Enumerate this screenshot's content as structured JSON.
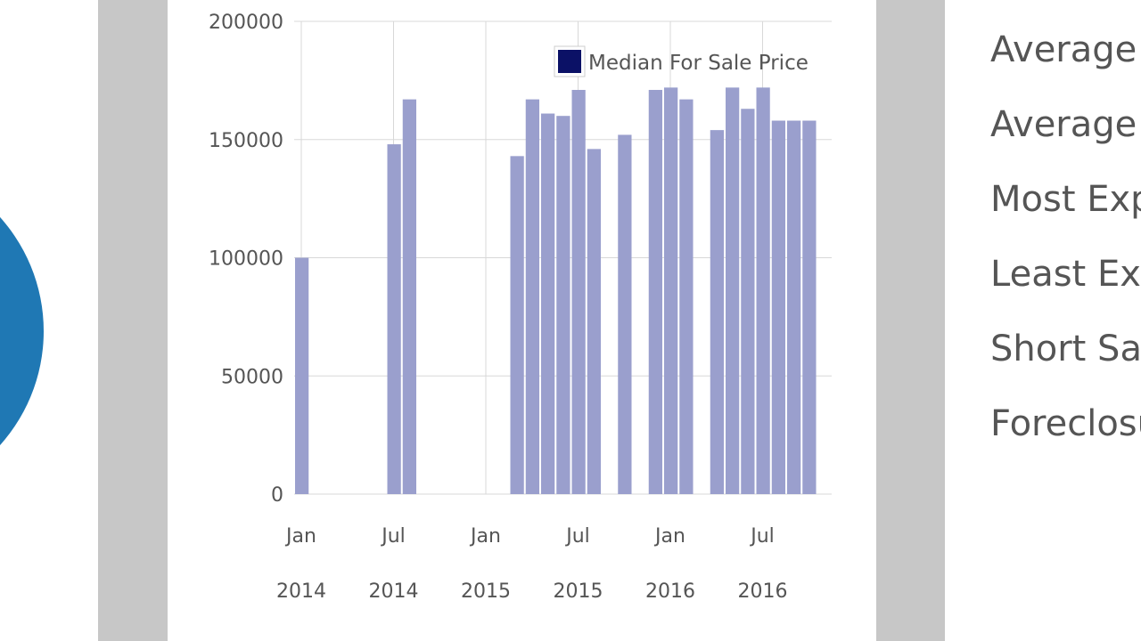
{
  "chart_data": {
    "type": "bar",
    "title": "",
    "xlabel": "",
    "ylabel": "",
    "ylim": [
      0,
      200000
    ],
    "y_ticks": [
      0,
      50000,
      100000,
      150000,
      200000
    ],
    "x_ticks": [
      {
        "month": "Jan",
        "year": "2014",
        "index": 0
      },
      {
        "month": "Jul",
        "year": "2014",
        "index": 6
      },
      {
        "month": "Jan",
        "year": "2015",
        "index": 12
      },
      {
        "month": "Jul",
        "year": "2015",
        "index": 18
      },
      {
        "month": "Jan",
        "year": "2016",
        "index": 24
      },
      {
        "month": "Jul",
        "year": "2016",
        "index": 30
      }
    ],
    "grid": true,
    "legend_position": "top-right",
    "series": [
      {
        "name": "Median For Sale Price",
        "color": "#9a9fcd",
        "legend_color": "#0b1166",
        "x": [
          "2014-01",
          "2014-07",
          "2014-08",
          "2015-03",
          "2015-04",
          "2015-05",
          "2015-06",
          "2015-07",
          "2015-08",
          "2015-10",
          "2015-12",
          "2016-01",
          "2016-02",
          "2016-04",
          "2016-05",
          "2016-06",
          "2016-07",
          "2016-08",
          "2016-09",
          "2016-10"
        ],
        "values": [
          100000,
          148000,
          167000,
          143000,
          167000,
          161000,
          160000,
          171000,
          146000,
          152000,
          171000,
          172000,
          167000,
          154000,
          172000,
          163000,
          172000,
          158000,
          158000,
          158000
        ]
      }
    ]
  },
  "stats": {
    "items": [
      "Average",
      "Average",
      "Most Exp",
      "Least Exp",
      "Short Sal",
      "Foreclosu"
    ]
  }
}
